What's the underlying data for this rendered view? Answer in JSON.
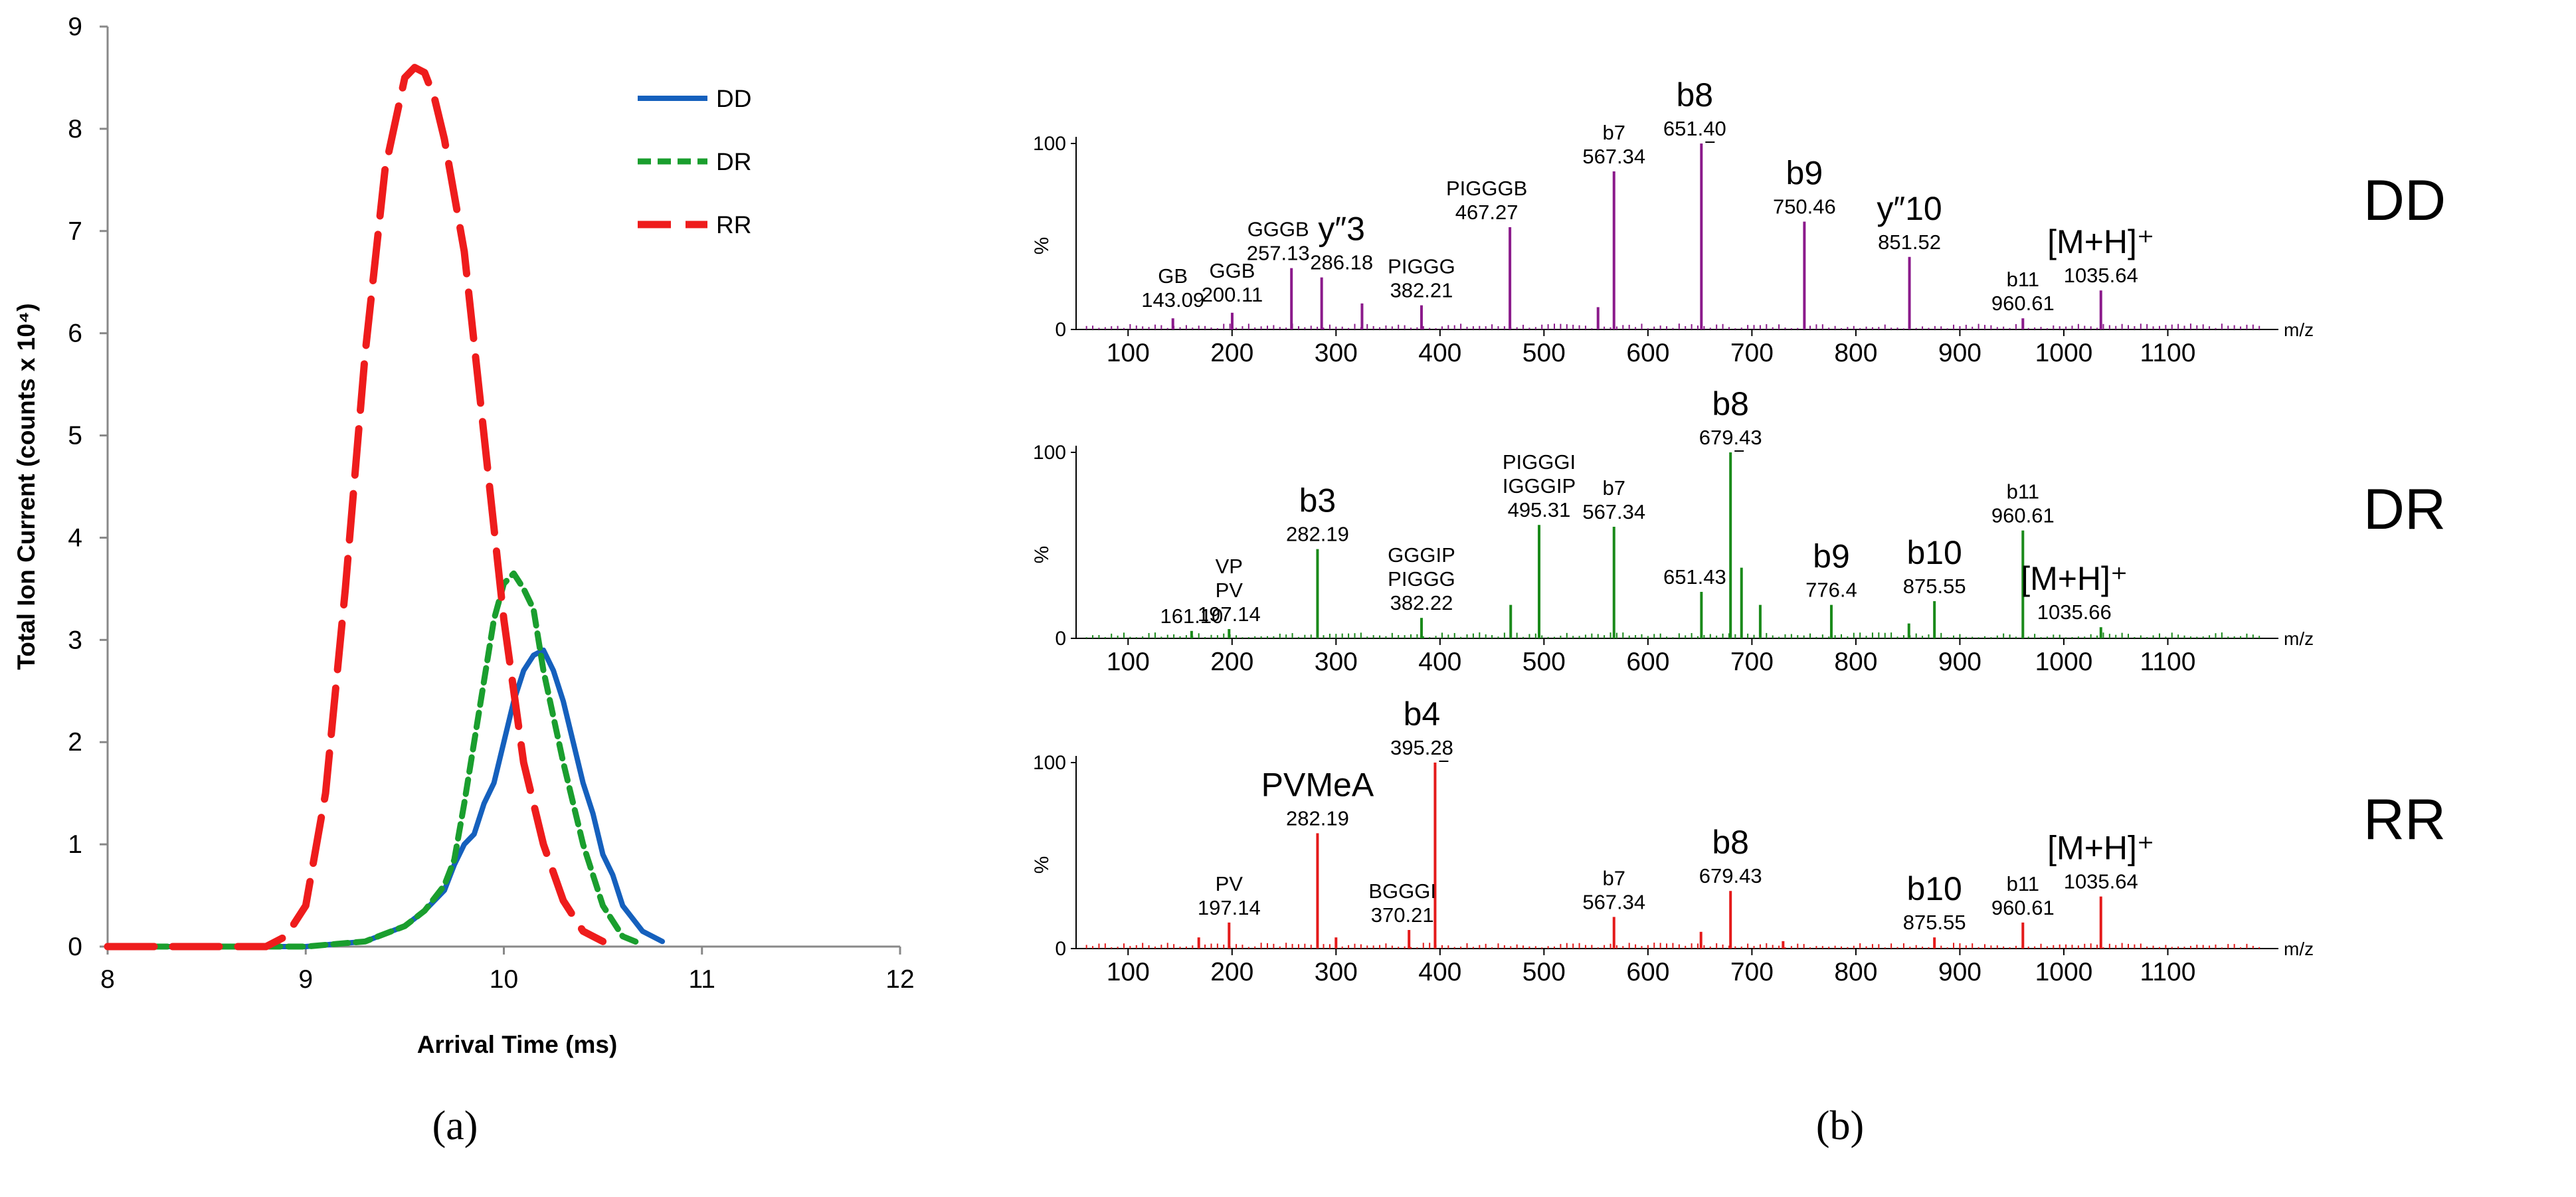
{
  "chart_data": [
    {
      "type": "line",
      "panel_label": "a",
      "xlabel": "Arrival Time (ms)",
      "ylabel": "Total Ion Current (counts x 10⁴)",
      "xlim": [
        8,
        12
      ],
      "ylim": [
        0,
        9
      ],
      "xticks": [
        "8",
        "9",
        "10",
        "11",
        "12"
      ],
      "yticks": [
        "0",
        "1",
        "2",
        "3",
        "4",
        "5",
        "6",
        "7",
        "8",
        "9"
      ],
      "legend_position": "top-right",
      "series": [
        {
          "name": "DD",
          "color": "#1560bd",
          "style": "solid",
          "x": [
            8.0,
            9.0,
            9.3,
            9.5,
            9.6,
            9.7,
            9.75,
            9.8,
            9.85,
            9.9,
            9.95,
            10.0,
            10.05,
            10.1,
            10.15,
            10.2,
            10.25,
            10.3,
            10.35,
            10.4,
            10.45,
            10.5,
            10.55,
            10.6,
            10.7,
            10.8
          ],
          "y": [
            0,
            0,
            0.05,
            0.2,
            0.35,
            0.55,
            0.8,
            1.0,
            1.1,
            1.4,
            1.6,
            2.0,
            2.4,
            2.7,
            2.85,
            2.9,
            2.7,
            2.4,
            2.0,
            1.6,
            1.3,
            0.9,
            0.7,
            0.4,
            0.15,
            0.05
          ]
        },
        {
          "name": "DR",
          "color": "#1a9e2e",
          "style": "dashed",
          "x": [
            8.0,
            8.35,
            9.0,
            9.3,
            9.5,
            9.6,
            9.7,
            9.75,
            9.8,
            9.85,
            9.9,
            9.95,
            10.0,
            10.05,
            10.1,
            10.15,
            10.2,
            10.3,
            10.4,
            10.5,
            10.6,
            10.7
          ],
          "y": [
            0,
            0,
            0,
            0.05,
            0.2,
            0.35,
            0.6,
            0.85,
            1.4,
            2.0,
            2.6,
            3.2,
            3.55,
            3.65,
            3.5,
            3.3,
            2.7,
            1.8,
            1.0,
            0.4,
            0.1,
            0.02
          ]
        },
        {
          "name": "RR",
          "color": "#ee1c1c",
          "style": "long-dash",
          "x": [
            8.0,
            8.8,
            8.9,
            9.0,
            9.1,
            9.2,
            9.3,
            9.4,
            9.5,
            9.55,
            9.6,
            9.65,
            9.7,
            9.8,
            9.9,
            10.0,
            10.1,
            10.2,
            10.3,
            10.4,
            10.5
          ],
          "y": [
            0,
            0,
            0.1,
            0.4,
            1.5,
            3.5,
            5.8,
            7.6,
            8.5,
            8.6,
            8.55,
            8.3,
            7.9,
            6.8,
            5.0,
            3.2,
            1.8,
            1.0,
            0.45,
            0.15,
            0.05
          ]
        }
      ]
    },
    {
      "type": "bar",
      "panel_label": "b",
      "xlim": [
        50,
        1200
      ],
      "ylim": [
        0,
        100
      ],
      "xticks": [
        "100",
        "200",
        "300",
        "400",
        "500",
        "600",
        "700",
        "800",
        "900",
        "1000",
        "1100"
      ],
      "yticks": [
        "100",
        "%",
        "0"
      ],
      "xunit": "m/z",
      "spectra": [
        {
          "name": "DD",
          "color": "#8b1a8b",
          "peaks": [
            [
              143.09,
              6
            ],
            [
              200.11,
              9
            ],
            [
              257.13,
              33
            ],
            [
              286.18,
              28
            ],
            [
              325,
              14
            ],
            [
              382.21,
              13
            ],
            [
              467.27,
              55
            ],
            [
              552,
              12
            ],
            [
              567.34,
              85
            ],
            [
              651.4,
              100
            ],
            [
              750.46,
              58
            ],
            [
              851.52,
              39
            ],
            [
              960.61,
              6
            ],
            [
              1035.64,
              21
            ]
          ],
          "labels": [
            {
              "lines": [
                "GB",
                "143.09"
              ],
              "big": false
            },
            {
              "lines": [
                "GGB",
                "200.11"
              ],
              "big": false
            },
            {
              "lines": [
                "GGGB",
                "257.13"
              ],
              "big": false
            },
            {
              "lines": [
                "y″3",
                "286.18"
              ],
              "big": true
            },
            {
              "lines": [
                "PIGGG",
                "382.21"
              ],
              "big": false
            },
            {
              "lines": [
                "PIGGGB",
                "467.27"
              ],
              "big": false
            },
            {
              "lines": [
                "b7",
                "567.34"
              ],
              "big": false
            },
            {
              "lines": [
                "b8",
                "651.40"
              ],
              "big": true
            },
            {
              "lines": [
                "b9",
                "750.46"
              ],
              "big": true
            },
            {
              "lines": [
                "y″10",
                "851.52"
              ],
              "big": true
            },
            {
              "lines": [
                "b11",
                "960.61"
              ],
              "big": false
            },
            {
              "lines": [
                "[M+H]⁺",
                "1035.64"
              ],
              "big": true
            }
          ]
        },
        {
          "name": "DR",
          "color": "#1a8a1a",
          "peaks": [
            [
              161.1,
              4
            ],
            [
              197.14,
              5
            ],
            [
              282.19,
              48
            ],
            [
              382.22,
              11
            ],
            [
              468,
              18
            ],
            [
              495.31,
              61
            ],
            [
              567.34,
              60
            ],
            [
              651.43,
              25
            ],
            [
              679.43,
              100
            ],
            [
              690,
              38
            ],
            [
              708,
              18
            ],
            [
              776.4,
              18
            ],
            [
              851,
              8
            ],
            [
              875.55,
              20
            ],
            [
              960.61,
              58
            ],
            [
              1035.66,
              6
            ]
          ],
          "labels": [
            {
              "lines": [
                "161.10"
              ],
              "big": false
            },
            {
              "lines": [
                "VP",
                "PV",
                "197.14"
              ],
              "big": false
            },
            {
              "lines": [
                "b3",
                "282.19"
              ],
              "big": true
            },
            {
              "lines": [
                "GGGIP",
                "PIGGG",
                "382.22"
              ],
              "big": false
            },
            {
              "lines": [
                "PIGGGI",
                "IGGGIP",
                "495.31"
              ],
              "big": false
            },
            {
              "lines": [
                "b7",
                "567.34"
              ],
              "big": false
            },
            {
              "lines": [
                "651.43"
              ],
              "big": false
            },
            {
              "lines": [
                "b8",
                "679.43"
              ],
              "big": true
            },
            {
              "lines": [
                "b9",
                "776.4"
              ],
              "big": true
            },
            {
              "lines": [
                "b10",
                "875.55"
              ],
              "big": true
            },
            {
              "lines": [
                "b11",
                "960.61"
              ],
              "big": false
            },
            {
              "lines": [
                "[M+H]⁺",
                "1035.66"
              ],
              "big": true
            }
          ]
        },
        {
          "name": "RR",
          "color": "#e41a1a",
          "peaks": [
            [
              168,
              6
            ],
            [
              197.14,
              14
            ],
            [
              282.19,
              62
            ],
            [
              300,
              6
            ],
            [
              370.21,
              10
            ],
            [
              395.28,
              100
            ],
            [
              567.34,
              17
            ],
            [
              651,
              9
            ],
            [
              679.43,
              31
            ],
            [
              730,
              4
            ],
            [
              875.55,
              6
            ],
            [
              960.61,
              14
            ],
            [
              1035.64,
              28
            ]
          ],
          "labels": [
            {
              "lines": [
                "PV",
                "197.14"
              ],
              "big": false
            },
            {
              "lines": [
                "PVMeA",
                "282.19"
              ],
              "big": true
            },
            {
              "lines": [
                "b4",
                "395.28"
              ],
              "big": true
            },
            {
              "lines": [
                "BGGGI",
                "370.21"
              ],
              "big": false
            },
            {
              "lines": [
                "b7",
                "567.34"
              ],
              "big": false
            },
            {
              "lines": [
                "b8",
                "679.43"
              ],
              "big": true
            },
            {
              "lines": [
                "b10",
                "875.55"
              ],
              "big": true
            },
            {
              "lines": [
                "b11",
                "960.61"
              ],
              "big": false
            },
            {
              "lines": [
                "[M+H]⁺",
                "1035.64"
              ],
              "big": true
            }
          ]
        }
      ]
    }
  ],
  "panel_labels": [
    "(a)",
    "(b)"
  ],
  "colors": {
    "DD": "#1560bd",
    "DR": "#1a9e2e",
    "RR": "#ee1c1c"
  }
}
